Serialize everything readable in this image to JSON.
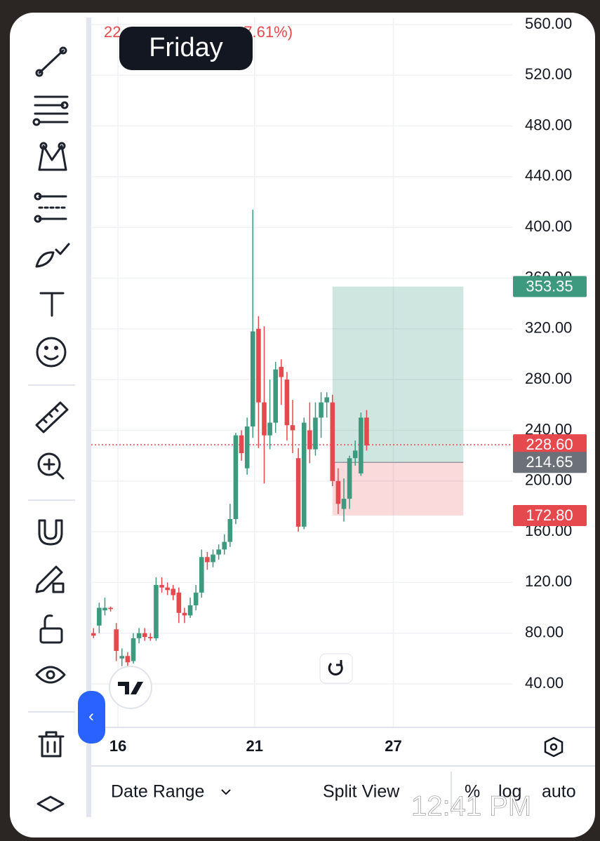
{
  "header": {
    "price_prefix": "22",
    "change": "-7.61%)",
    "tooltip": "Friday"
  },
  "chart_data": {
    "type": "candlestick",
    "candles": {
      "open": [
        80,
        86,
        98,
        100,
        83,
        60,
        62,
        58,
        76,
        80,
        77,
        76,
        118,
        116,
        115,
        112,
        96,
        94,
        102,
        112,
        140,
        136,
        142,
        146,
        152,
        170,
        236,
        210,
        243,
        320,
        262,
        236,
        246,
        290,
        280,
        244,
        218,
        164,
        240,
        225,
        250,
        262,
        262,
        200,
        178,
        186,
        218,
        206,
        250
      ],
      "high": [
        84,
        104,
        108,
        101,
        88,
        68,
        65,
        80,
        84,
        84,
        80,
        124,
        124,
        120,
        118,
        116,
        100,
        108,
        118,
        146,
        144,
        146,
        150,
        158,
        182,
        238,
        240,
        250,
        414,
        330,
        322,
        280,
        294,
        296,
        286,
        264,
        226,
        250,
        262,
        262,
        270,
        270,
        268,
        210,
        202,
        220,
        232,
        254,
        256
      ],
      "low": [
        76,
        80,
        94,
        97,
        58,
        54,
        50,
        56,
        72,
        74,
        74,
        74,
        112,
        110,
        106,
        88,
        88,
        92,
        98,
        108,
        130,
        132,
        138,
        142,
        148,
        166,
        216,
        205,
        234,
        226,
        198,
        225,
        238,
        260,
        232,
        222,
        160,
        162,
        214,
        220,
        234,
        250,
        196,
        174,
        168,
        178,
        212,
        204,
        224
      ],
      "close": [
        78,
        100,
        100,
        99,
        66,
        62,
        57,
        76,
        80,
        77,
        76,
        118,
        116,
        114,
        110,
        96,
        94,
        102,
        112,
        140,
        136,
        142,
        146,
        152,
        170,
        236,
        222,
        243,
        318,
        262,
        236,
        246,
        288,
        282,
        244,
        240,
        164,
        246,
        225,
        250,
        262,
        266,
        200,
        182,
        186,
        218,
        224,
        250,
        228
      ]
    },
    "up_color": "#3d9a7f",
    "down_color": "#e5484d",
    "xlim": [
      -0.4,
      73.6
    ],
    "xticks": [
      {
        "value": 4.3,
        "label": "16"
      },
      {
        "value": 28.3,
        "label": "21"
      },
      {
        "value": 52.7,
        "label": "27"
      }
    ],
    "ylim": [
      40,
      560
    ],
    "yticks": [
      {
        "value": 40,
        "label": "40.00"
      },
      {
        "value": 80,
        "label": "80.00"
      },
      {
        "value": 120,
        "label": "120.00"
      },
      {
        "value": 160,
        "label": "160.00"
      },
      {
        "value": 200,
        "label": "200.00"
      },
      {
        "value": 240,
        "label": "240.00"
      },
      {
        "value": 280,
        "label": "280.00"
      },
      {
        "value": 320,
        "label": "320.00"
      },
      {
        "value": 360,
        "label": "360.00"
      },
      {
        "value": 400,
        "label": "400.00"
      },
      {
        "value": 440,
        "label": "440.00"
      },
      {
        "value": 480,
        "label": "480.00"
      },
      {
        "value": 520,
        "label": "520.00"
      },
      {
        "value": 560,
        "label": "560.00"
      }
    ],
    "grid": true,
    "position": {
      "x": [
        42,
        65
      ],
      "target": 353.35,
      "entry": 214.65,
      "stop": 172.8
    },
    "current_price": 228.6,
    "price_labels": [
      {
        "value": 353.35,
        "label": "353.35",
        "color": "#3d9a7f"
      },
      {
        "value": 228.6,
        "label": "228.60",
        "color": "#e5484d"
      },
      {
        "value": 214.65,
        "label": "214.65",
        "color": "#6b7079"
      },
      {
        "value": 172.8,
        "label": "172.80",
        "color": "#e5484d"
      }
    ]
  },
  "bottom_bar": {
    "date_range": "Date Range",
    "split_view": "Split View",
    "percent": "%",
    "log": "log",
    "auto": "auto"
  },
  "timestamp": "12:41 PM"
}
